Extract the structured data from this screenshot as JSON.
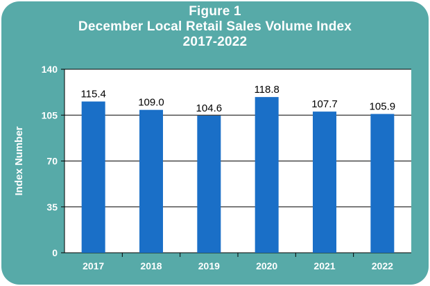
{
  "chart_data": {
    "type": "bar",
    "title_lines": [
      "Figure 1",
      "December Local Retail Sales Volume Index",
      "2017-2022"
    ],
    "xlabel": "",
    "ylabel": "Index Number",
    "categories": [
      "2017",
      "2018",
      "2019",
      "2020",
      "2021",
      "2022"
    ],
    "values": [
      115.4,
      109.0,
      104.6,
      118.8,
      107.7,
      105.9
    ],
    "data_labels": [
      "115.4",
      "109.0",
      "104.6",
      "118.8",
      "107.7",
      "105.9"
    ],
    "y_ticks": [
      "0",
      "35",
      "70",
      "105",
      "140"
    ],
    "ylim": [
      0,
      140
    ],
    "grid": true,
    "legend": "none",
    "colors": {
      "frame": "#57aaa8",
      "plot_bg": "#ffffff",
      "bar": "#1a6fc7",
      "gridline": "#000000"
    }
  }
}
